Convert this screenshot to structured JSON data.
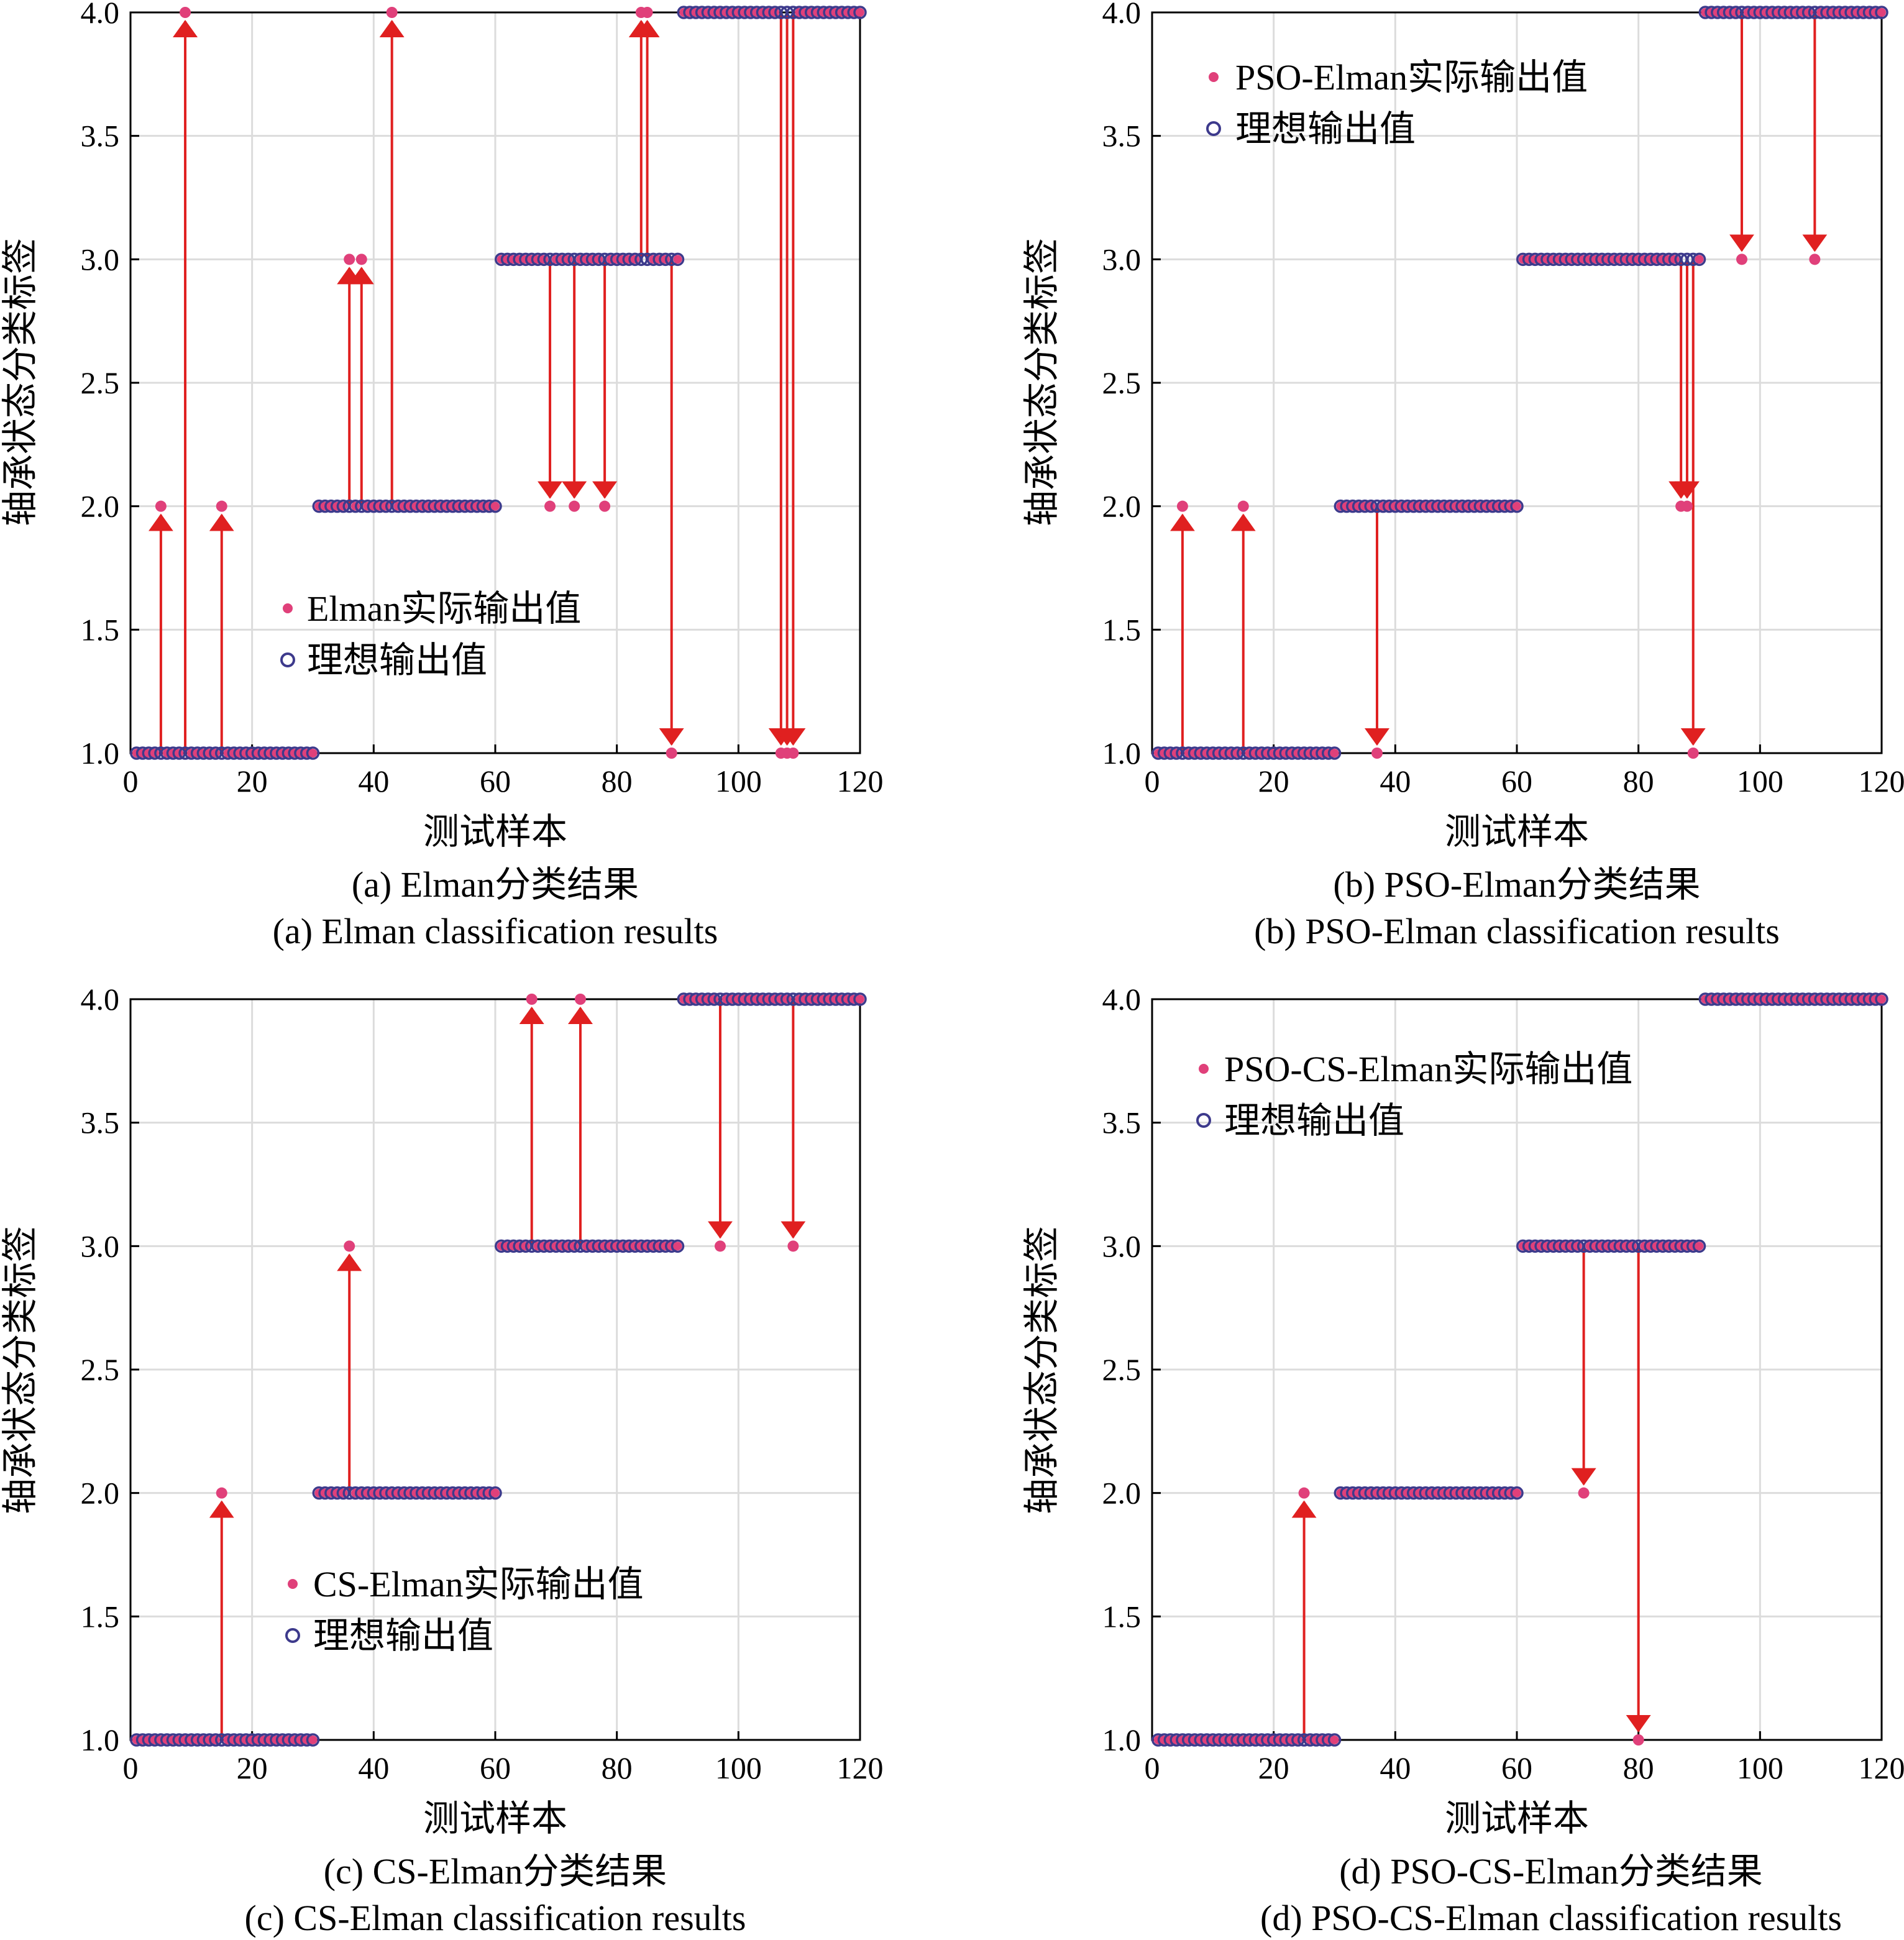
{
  "figure": {
    "colors": {
      "actual": "#e0407a",
      "ideal_edge": "#3d3a8c",
      "arrow": "#e02020",
      "grid": "#dcdcdc",
      "axis": "#000000"
    }
  },
  "chart_data": [
    {
      "type": "scatter",
      "panel": "a",
      "xlabel": "测试样本",
      "ylabel": "轴承状态分类标签",
      "xlim": [
        0,
        120
      ],
      "ylim": [
        1,
        4
      ],
      "xticks": [
        0,
        20,
        40,
        60,
        80,
        100,
        120
      ],
      "yticks": [
        "1.0",
        "1.5",
        "2.0",
        "2.5",
        "3.0",
        "3.5",
        "4.0"
      ],
      "grid": true,
      "legend_position": "lower-left",
      "legend": [
        "Elman实际输出值",
        "理想输出值"
      ],
      "caption_cn": "(a)  Elman分类结果",
      "caption_en": "(a)  Elman classification results",
      "ideal_segments": [
        {
          "from": 1,
          "to": 30,
          "value": 1
        },
        {
          "from": 31,
          "to": 60,
          "value": 2
        },
        {
          "from": 61,
          "to": 90,
          "value": 3
        },
        {
          "from": 91,
          "to": 120,
          "value": 4
        }
      ],
      "misclassified": [
        {
          "x": 5,
          "ideal": 1,
          "actual": 2
        },
        {
          "x": 9,
          "ideal": 1,
          "actual": 4
        },
        {
          "x": 15,
          "ideal": 1,
          "actual": 2
        },
        {
          "x": 36,
          "ideal": 2,
          "actual": 3
        },
        {
          "x": 38,
          "ideal": 2,
          "actual": 3
        },
        {
          "x": 43,
          "ideal": 2,
          "actual": 4
        },
        {
          "x": 69,
          "ideal": 3,
          "actual": 2
        },
        {
          "x": 73,
          "ideal": 3,
          "actual": 2
        },
        {
          "x": 78,
          "ideal": 3,
          "actual": 2
        },
        {
          "x": 84,
          "ideal": 3,
          "actual": 4
        },
        {
          "x": 85,
          "ideal": 3,
          "actual": 4
        },
        {
          "x": 89,
          "ideal": 3,
          "actual": 1
        },
        {
          "x": 107,
          "ideal": 4,
          "actual": 1
        },
        {
          "x": 108,
          "ideal": 4,
          "actual": 1
        },
        {
          "x": 109,
          "ideal": 4,
          "actual": 1
        }
      ]
    },
    {
      "type": "scatter",
      "panel": "b",
      "xlabel": "测试样本",
      "ylabel": "轴承状态分类标签",
      "xlim": [
        0,
        120
      ],
      "ylim": [
        1,
        4
      ],
      "xticks": [
        0,
        20,
        40,
        60,
        80,
        100,
        120
      ],
      "yticks": [
        "1.0",
        "1.5",
        "2.0",
        "2.5",
        "3.0",
        "3.5",
        "4.0"
      ],
      "grid": true,
      "legend_position": "top-left",
      "legend": [
        "PSO-Elman实际输出值",
        "理想输出值"
      ],
      "caption_cn": "(b)  PSO-Elman分类结果",
      "caption_en": "(b)  PSO-Elman classification results",
      "ideal_segments": [
        {
          "from": 1,
          "to": 30,
          "value": 1
        },
        {
          "from": 31,
          "to": 60,
          "value": 2
        },
        {
          "from": 61,
          "to": 90,
          "value": 3
        },
        {
          "from": 91,
          "to": 120,
          "value": 4
        }
      ],
      "misclassified": [
        {
          "x": 5,
          "ideal": 1,
          "actual": 2
        },
        {
          "x": 15,
          "ideal": 1,
          "actual": 2
        },
        {
          "x": 37,
          "ideal": 2,
          "actual": 1
        },
        {
          "x": 87,
          "ideal": 3,
          "actual": 2
        },
        {
          "x": 88,
          "ideal": 3,
          "actual": 2
        },
        {
          "x": 89,
          "ideal": 3,
          "actual": 1
        },
        {
          "x": 97,
          "ideal": 4,
          "actual": 3
        },
        {
          "x": 109,
          "ideal": 4,
          "actual": 3
        }
      ]
    },
    {
      "type": "scatter",
      "panel": "c",
      "xlabel": "测试样本",
      "ylabel": "轴承状态分类标签",
      "xlim": [
        0,
        120
      ],
      "ylim": [
        1,
        4
      ],
      "xticks": [
        0,
        20,
        40,
        60,
        80,
        100,
        120
      ],
      "yticks": [
        "1.0",
        "1.5",
        "2.0",
        "2.5",
        "3.0",
        "3.5",
        "4.0"
      ],
      "grid": true,
      "legend_position": "lower-left",
      "legend": [
        "CS-Elman实际输出值",
        "理想输出值"
      ],
      "caption_cn": "(c)  CS-Elman分类结果",
      "caption_en": "(c)  CS-Elman classification results",
      "ideal_segments": [
        {
          "from": 1,
          "to": 30,
          "value": 1
        },
        {
          "from": 31,
          "to": 60,
          "value": 2
        },
        {
          "from": 61,
          "to": 90,
          "value": 3
        },
        {
          "from": 91,
          "to": 120,
          "value": 4
        }
      ],
      "misclassified": [
        {
          "x": 15,
          "ideal": 1,
          "actual": 2
        },
        {
          "x": 36,
          "ideal": 2,
          "actual": 3
        },
        {
          "x": 66,
          "ideal": 3,
          "actual": 4
        },
        {
          "x": 74,
          "ideal": 3,
          "actual": 4
        },
        {
          "x": 97,
          "ideal": 4,
          "actual": 3
        },
        {
          "x": 109,
          "ideal": 4,
          "actual": 3
        }
      ]
    },
    {
      "type": "scatter",
      "panel": "d",
      "xlabel": "测试样本",
      "ylabel": "轴承状态分类标签",
      "xlim": [
        0,
        120
      ],
      "ylim": [
        1,
        4
      ],
      "xticks": [
        0,
        20,
        40,
        60,
        80,
        100,
        120
      ],
      "yticks": [
        "1.0",
        "1.5",
        "2.0",
        "2.5",
        "3.0",
        "3.5",
        "4.0"
      ],
      "grid": true,
      "legend_position": "top-left",
      "legend": [
        "PSO-CS-Elman实际输出值",
        "理想输出值"
      ],
      "caption_cn": "(d)  PSO-CS-Elman分类结果",
      "caption_en": "(d)  PSO-CS-Elman classification results",
      "ideal_segments": [
        {
          "from": 1,
          "to": 30,
          "value": 1
        },
        {
          "from": 31,
          "to": 60,
          "value": 2
        },
        {
          "from": 61,
          "to": 90,
          "value": 3
        },
        {
          "from": 91,
          "to": 120,
          "value": 4
        }
      ],
      "misclassified": [
        {
          "x": 25,
          "ideal": 1,
          "actual": 2
        },
        {
          "x": 71,
          "ideal": 3,
          "actual": 2
        },
        {
          "x": 80,
          "ideal": 3,
          "actual": 1
        }
      ]
    }
  ]
}
